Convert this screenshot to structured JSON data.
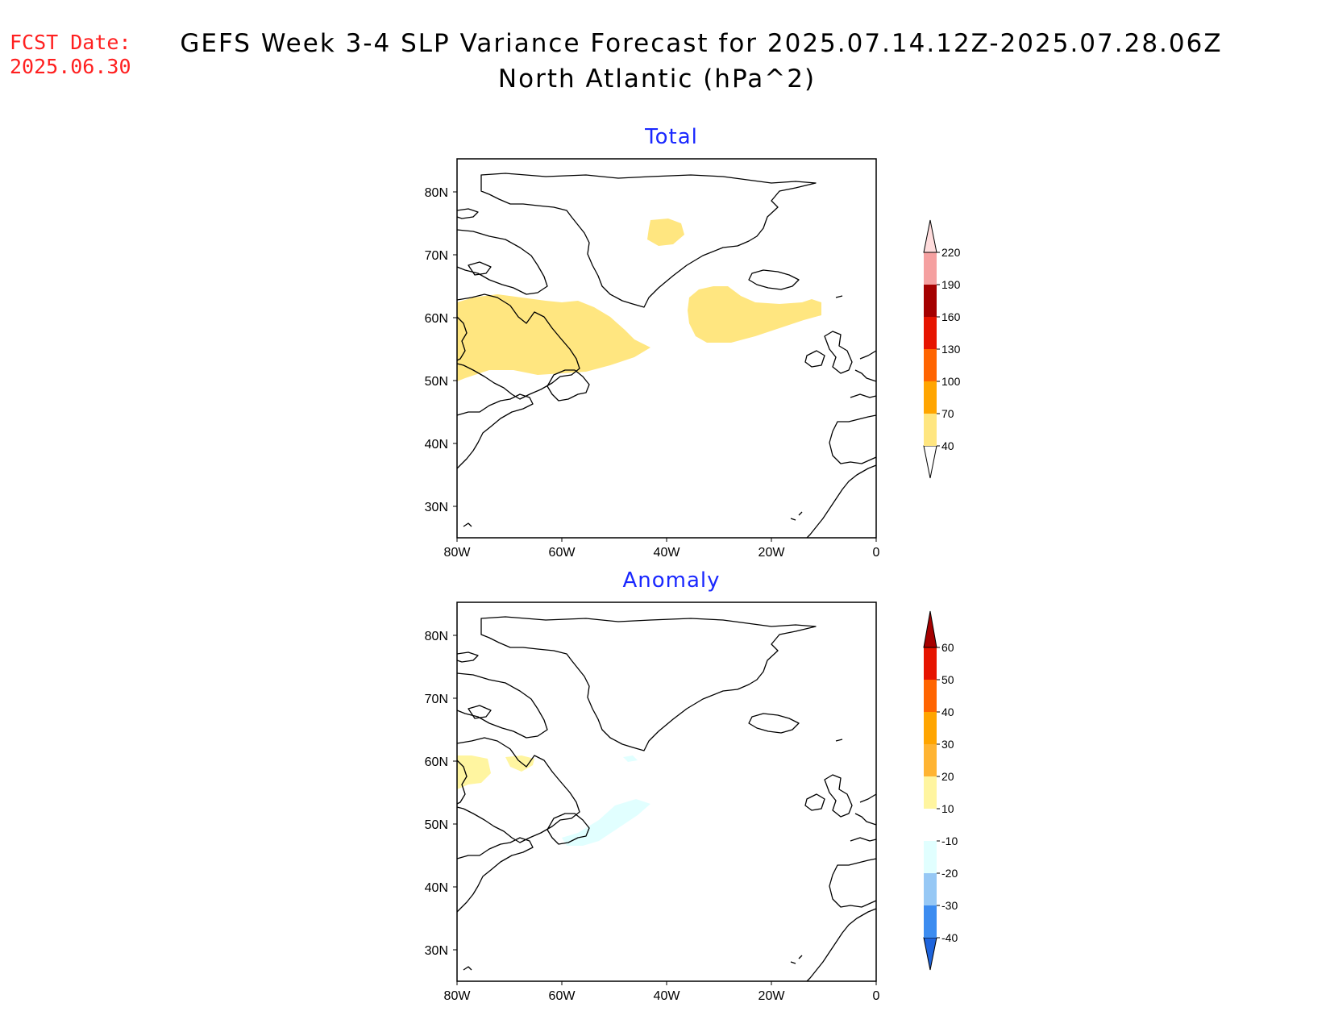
{
  "header": {
    "fcst_label": "FCST Date:",
    "fcst_date": "2025.06.30",
    "title_line1": "GEFS Week 3-4 SLP Variance Forecast for 2025.07.14.12Z-2025.07.28.06Z",
    "title_line2": "North Atlantic (hPa^2)"
  },
  "map": {
    "region": "North Atlantic",
    "lon_range": [
      -80,
      0
    ],
    "lat_range": [
      25,
      85
    ],
    "x_ticks": [
      "80W",
      "60W",
      "40W",
      "20W",
      "0"
    ],
    "y_ticks": [
      "30N",
      "40N",
      "50N",
      "60N",
      "70N",
      "80N"
    ],
    "coastline_color": "#000000"
  },
  "panels": [
    {
      "title": "Total",
      "colorbar": {
        "labels": [
          "40",
          "70",
          "100",
          "130",
          "160",
          "190",
          "220"
        ],
        "colors": [
          "#ffe680",
          "#ffa500",
          "#ff6400",
          "#e61400",
          "#a50000",
          "#f5a0a0",
          "#ffdcdc"
        ],
        "arrow_low_color": "#ffffff",
        "arrow_high_color": "#ffdcdc"
      },
      "shaded_regions": [
        {
          "color": "#ffe680",
          "value_range": "40-70",
          "area": "Labrador Sea / Hudson Strait to south of Greenland"
        },
        {
          "color": "#ffe680",
          "value_range": "40-70",
          "area": "Central Greenland"
        },
        {
          "color": "#ffe680",
          "value_range": "40-70",
          "area": "South of Iceland"
        }
      ]
    },
    {
      "title": "Anomaly",
      "colorbar": {
        "labels": [
          "-40",
          "-30",
          "-20",
          "-10",
          "10",
          "20",
          "30",
          "40",
          "50",
          "60"
        ],
        "colors": [
          "#1e64dc",
          "#3c8cf0",
          "#96c8f5",
          "#e1ffff",
          "#ffffff",
          "#fff5a0",
          "#ffb432",
          "#ffa500",
          "#ff6400",
          "#e61400",
          "#a50000"
        ],
        "arrow_low_color": "#1e64dc",
        "arrow_high_color": "#a50000"
      },
      "shaded_regions": [
        {
          "color": "#fff5a0",
          "value_range": "10-20",
          "area": "Hudson Strait / Ungava"
        },
        {
          "color": "#e1ffff",
          "value_range": "-20--10",
          "area": "Southeast of Newfoundland"
        },
        {
          "color": "#e1ffff",
          "value_range": "-20--10",
          "area": "Southern tip of Greenland"
        }
      ]
    }
  ]
}
